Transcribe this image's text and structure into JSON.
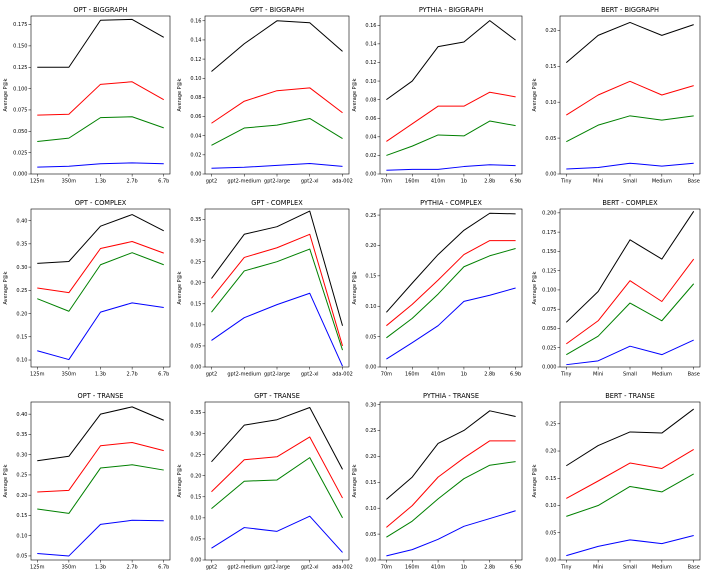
{
  "figure": {
    "ylabel": "Average P@k",
    "series_colors": [
      "#000000",
      "#ff0000",
      "#008000",
      "#0000ff"
    ]
  },
  "chart_data": [
    {
      "type": "line",
      "title": "OPT - BIGGRAPH",
      "categories": [
        "125m",
        "350m",
        "1.3b",
        "2.7b",
        "6.7b"
      ],
      "ylim": [
        0.0,
        0.185
      ],
      "yticks": [
        0.0,
        0.025,
        0.05,
        0.075,
        0.1,
        0.125,
        0.15,
        0.175
      ],
      "ytick_labels": [
        "0.000",
        "0.025",
        "0.050",
        "0.075",
        "0.100",
        "0.125",
        "0.150",
        "0.175"
      ],
      "series": [
        {
          "name": "black",
          "values": [
            0.125,
            0.125,
            0.18,
            0.181,
            0.16
          ]
        },
        {
          "name": "red",
          "values": [
            0.069,
            0.07,
            0.105,
            0.108,
            0.087
          ]
        },
        {
          "name": "green",
          "values": [
            0.038,
            0.042,
            0.066,
            0.067,
            0.054
          ]
        },
        {
          "name": "blue",
          "values": [
            0.008,
            0.009,
            0.012,
            0.013,
            0.012
          ]
        }
      ]
    },
    {
      "type": "line",
      "title": "GPT - BIGGRAPH",
      "categories": [
        "gpt2",
        "gpt2-medium",
        "gpt2-large",
        "gpt2-xl",
        "ada-002"
      ],
      "ylim": [
        0.0,
        0.165
      ],
      "yticks": [
        0.0,
        0.02,
        0.04,
        0.06,
        0.08,
        0.1,
        0.12,
        0.14,
        0.16
      ],
      "ytick_labels": [
        "0.00",
        "0.02",
        "0.04",
        "0.06",
        "0.08",
        "0.10",
        "0.12",
        "0.14",
        "0.16"
      ],
      "series": [
        {
          "name": "black",
          "values": [
            0.107,
            0.136,
            0.16,
            0.158,
            0.128
          ]
        },
        {
          "name": "red",
          "values": [
            0.053,
            0.076,
            0.087,
            0.09,
            0.064
          ]
        },
        {
          "name": "green",
          "values": [
            0.03,
            0.048,
            0.051,
            0.058,
            0.037
          ]
        },
        {
          "name": "blue",
          "values": [
            0.006,
            0.007,
            0.009,
            0.011,
            0.008
          ]
        }
      ]
    },
    {
      "type": "line",
      "title": "PYTHIA - BIGGRAPH",
      "categories": [
        "70m",
        "160m",
        "410m",
        "1b",
        "2.8b",
        "6.9b"
      ],
      "ylim": [
        0.0,
        0.17
      ],
      "yticks": [
        0.0,
        0.02,
        0.04,
        0.06,
        0.08,
        0.1,
        0.12,
        0.14,
        0.16
      ],
      "ytick_labels": [
        "0.00",
        "0.02",
        "0.04",
        "0.06",
        "0.08",
        "0.10",
        "0.12",
        "0.14",
        "0.16"
      ],
      "series": [
        {
          "name": "black",
          "values": [
            0.08,
            0.1,
            0.137,
            0.142,
            0.165,
            0.144
          ]
        },
        {
          "name": "red",
          "values": [
            0.035,
            0.054,
            0.073,
            0.073,
            0.088,
            0.083
          ]
        },
        {
          "name": "green",
          "values": [
            0.02,
            0.03,
            0.042,
            0.041,
            0.057,
            0.052
          ]
        },
        {
          "name": "blue",
          "values": [
            0.004,
            0.005,
            0.005,
            0.008,
            0.01,
            0.009
          ]
        }
      ]
    },
    {
      "type": "line",
      "title": "BERT - BIGGRAPH",
      "categories": [
        "Tiny",
        "Mini",
        "Small",
        "Medium",
        "Base"
      ],
      "ylim": [
        0.0,
        0.22
      ],
      "yticks": [
        0.0,
        0.05,
        0.1,
        0.15,
        0.2
      ],
      "ytick_labels": [
        "0.00",
        "0.05",
        "0.10",
        "0.15",
        "0.20"
      ],
      "series": [
        {
          "name": "black",
          "values": [
            0.155,
            0.193,
            0.211,
            0.193,
            0.208
          ]
        },
        {
          "name": "red",
          "values": [
            0.082,
            0.11,
            0.129,
            0.11,
            0.123
          ]
        },
        {
          "name": "green",
          "values": [
            0.045,
            0.068,
            0.081,
            0.075,
            0.081
          ]
        },
        {
          "name": "blue",
          "values": [
            0.007,
            0.009,
            0.015,
            0.011,
            0.015
          ]
        }
      ]
    },
    {
      "type": "line",
      "title": "OPT - COMPLEX",
      "categories": [
        "125m",
        "350m",
        "1.3b",
        "2.7b",
        "6.7b"
      ],
      "ylim": [
        0.085,
        0.425
      ],
      "yticks": [
        0.1,
        0.15,
        0.2,
        0.25,
        0.3,
        0.35,
        0.4
      ],
      "ytick_labels": [
        "0.10",
        "0.15",
        "0.20",
        "0.25",
        "0.30",
        "0.35",
        "0.40"
      ],
      "series": [
        {
          "name": "black",
          "values": [
            0.308,
            0.312,
            0.388,
            0.413,
            0.378
          ]
        },
        {
          "name": "red",
          "values": [
            0.255,
            0.245,
            0.34,
            0.355,
            0.33
          ]
        },
        {
          "name": "green",
          "values": [
            0.232,
            0.205,
            0.305,
            0.331,
            0.305
          ]
        },
        {
          "name": "blue",
          "values": [
            0.12,
            0.101,
            0.203,
            0.223,
            0.213
          ]
        }
      ]
    },
    {
      "type": "line",
      "title": "GPT - COMPLEX",
      "categories": [
        "gpt2",
        "gpt2-medium",
        "gpt2-large",
        "gpt2-xl",
        "ada-002"
      ],
      "ylim": [
        0.0,
        0.375
      ],
      "yticks": [
        0.0,
        0.05,
        0.1,
        0.15,
        0.2,
        0.25,
        0.3,
        0.35
      ],
      "ytick_labels": [
        "0.00",
        "0.05",
        "0.10",
        "0.15",
        "0.20",
        "0.25",
        "0.30",
        "0.35"
      ],
      "series": [
        {
          "name": "black",
          "values": [
            0.21,
            0.315,
            0.333,
            0.37,
            0.098
          ]
        },
        {
          "name": "red",
          "values": [
            0.163,
            0.26,
            0.283,
            0.315,
            0.05
          ]
        },
        {
          "name": "green",
          "values": [
            0.13,
            0.228,
            0.25,
            0.28,
            0.04
          ]
        },
        {
          "name": "blue",
          "values": [
            0.063,
            0.117,
            0.148,
            0.175,
            0.002
          ]
        }
      ]
    },
    {
      "type": "line",
      "title": "PYTHIA - COMPLEX",
      "categories": [
        "70m",
        "160m",
        "410m",
        "1b",
        "2.8b",
        "6.9b"
      ],
      "ylim": [
        0.0,
        0.26
      ],
      "yticks": [
        0.0,
        0.05,
        0.1,
        0.15,
        0.2,
        0.25
      ],
      "ytick_labels": [
        "0.00",
        "0.05",
        "0.10",
        "0.15",
        "0.20",
        "0.25"
      ],
      "series": [
        {
          "name": "black",
          "values": [
            0.09,
            0.138,
            0.185,
            0.225,
            0.253,
            0.252
          ]
        },
        {
          "name": "red",
          "values": [
            0.068,
            0.103,
            0.143,
            0.185,
            0.208,
            0.208
          ]
        },
        {
          "name": "green",
          "values": [
            0.048,
            0.08,
            0.12,
            0.165,
            0.183,
            0.195
          ]
        },
        {
          "name": "blue",
          "values": [
            0.013,
            0.04,
            0.068,
            0.108,
            0.118,
            0.13
          ]
        }
      ]
    },
    {
      "type": "line",
      "title": "BERT - COMPLEX",
      "categories": [
        "Tiny",
        "Mini",
        "Small",
        "Medium",
        "Base"
      ],
      "ylim": [
        0.0,
        0.205
      ],
      "yticks": [
        0.0,
        0.025,
        0.05,
        0.075,
        0.1,
        0.125,
        0.15,
        0.175,
        0.2
      ],
      "ytick_labels": [
        "0.000",
        "0.025",
        "0.050",
        "0.075",
        "0.100",
        "0.125",
        "0.150",
        "0.175",
        "0.200"
      ],
      "series": [
        {
          "name": "black",
          "values": [
            0.058,
            0.098,
            0.165,
            0.14,
            0.202
          ]
        },
        {
          "name": "red",
          "values": [
            0.03,
            0.06,
            0.112,
            0.085,
            0.14
          ]
        },
        {
          "name": "green",
          "values": [
            0.016,
            0.04,
            0.083,
            0.06,
            0.108
          ]
        },
        {
          "name": "blue",
          "values": [
            0.003,
            0.008,
            0.027,
            0.016,
            0.035
          ]
        }
      ]
    },
    {
      "type": "line",
      "title": "OPT - TRANSE",
      "categories": [
        "125m",
        "350m",
        "1.3b",
        "2.7b",
        "6.7b"
      ],
      "ylim": [
        0.04,
        0.43
      ],
      "yticks": [
        0.05,
        0.1,
        0.15,
        0.2,
        0.25,
        0.3,
        0.35,
        0.4
      ],
      "ytick_labels": [
        "0.05",
        "0.10",
        "0.15",
        "0.20",
        "0.25",
        "0.30",
        "0.35",
        "0.40"
      ],
      "series": [
        {
          "name": "black",
          "values": [
            0.285,
            0.296,
            0.4,
            0.418,
            0.385
          ]
        },
        {
          "name": "red",
          "values": [
            0.208,
            0.212,
            0.322,
            0.33,
            0.31
          ]
        },
        {
          "name": "green",
          "values": [
            0.166,
            0.155,
            0.267,
            0.275,
            0.262
          ]
        },
        {
          "name": "blue",
          "values": [
            0.056,
            0.05,
            0.128,
            0.138,
            0.137
          ]
        }
      ]
    },
    {
      "type": "line",
      "title": "GPT - TRANSE",
      "categories": [
        "gpt2",
        "gpt2-medium",
        "gpt2-large",
        "gpt2-xl",
        "ada-002"
      ],
      "ylim": [
        0.0,
        0.375
      ],
      "yticks": [
        0.0,
        0.05,
        0.1,
        0.15,
        0.2,
        0.25,
        0.3,
        0.35
      ],
      "ytick_labels": [
        "0.00",
        "0.05",
        "0.10",
        "0.15",
        "0.20",
        "0.25",
        "0.30",
        "0.35"
      ],
      "series": [
        {
          "name": "black",
          "values": [
            0.233,
            0.32,
            0.333,
            0.362,
            0.215
          ]
        },
        {
          "name": "red",
          "values": [
            0.162,
            0.238,
            0.245,
            0.292,
            0.147
          ]
        },
        {
          "name": "green",
          "values": [
            0.122,
            0.187,
            0.19,
            0.243,
            0.1
          ]
        },
        {
          "name": "blue",
          "values": [
            0.028,
            0.077,
            0.068,
            0.104,
            0.018
          ]
        }
      ]
    },
    {
      "type": "line",
      "title": "PYTHIA - TRANSE",
      "categories": [
        "70m",
        "160m",
        "410m",
        "1b",
        "2.8b",
        "6.9b"
      ],
      "ylim": [
        0.0,
        0.305
      ],
      "yticks": [
        0.0,
        0.05,
        0.1,
        0.15,
        0.2,
        0.25,
        0.3
      ],
      "ytick_labels": [
        "0.00",
        "0.05",
        "0.10",
        "0.15",
        "0.20",
        "0.25",
        "0.30"
      ],
      "series": [
        {
          "name": "black",
          "values": [
            0.117,
            0.16,
            0.225,
            0.25,
            0.288,
            0.277
          ]
        },
        {
          "name": "red",
          "values": [
            0.063,
            0.105,
            0.16,
            0.197,
            0.23,
            0.23
          ]
        },
        {
          "name": "green",
          "values": [
            0.044,
            0.075,
            0.118,
            0.157,
            0.183,
            0.19
          ]
        },
        {
          "name": "blue",
          "values": [
            0.008,
            0.02,
            0.04,
            0.065,
            0.08,
            0.095
          ]
        }
      ]
    },
    {
      "type": "line",
      "title": "BERT - TRANSE",
      "categories": [
        "Tiny",
        "Mini",
        "Small",
        "Medium",
        "Base"
      ],
      "ylim": [
        0.0,
        0.29
      ],
      "yticks": [
        0.0,
        0.05,
        0.1,
        0.15,
        0.2,
        0.25
      ],
      "ytick_labels": [
        "0.00",
        "0.05",
        "0.10",
        "0.15",
        "0.20",
        "0.25"
      ],
      "series": [
        {
          "name": "black",
          "values": [
            0.173,
            0.21,
            0.235,
            0.233,
            0.277
          ]
        },
        {
          "name": "red",
          "values": [
            0.113,
            0.145,
            0.178,
            0.168,
            0.203
          ]
        },
        {
          "name": "green",
          "values": [
            0.08,
            0.1,
            0.135,
            0.125,
            0.158
          ]
        },
        {
          "name": "blue",
          "values": [
            0.008,
            0.025,
            0.037,
            0.03,
            0.045
          ]
        }
      ]
    }
  ]
}
